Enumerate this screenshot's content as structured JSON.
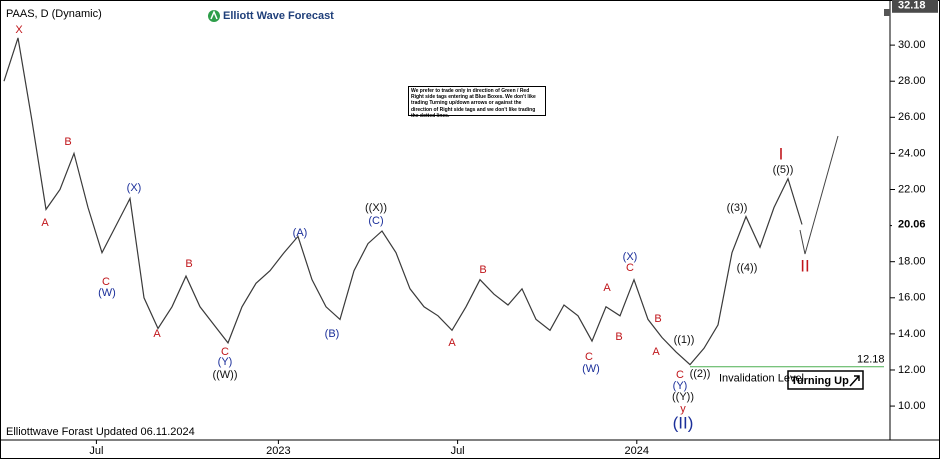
{
  "chart_data": {
    "type": "line",
    "title": "PAAS, D (Dynamic)",
    "color": "#3a3a3a",
    "values": [
      28,
      30.4,
      25.8,
      20.9,
      22,
      24,
      21,
      18.5,
      20,
      21.5,
      16,
      14.3,
      15.5,
      17.2,
      15.5,
      14.5,
      13.5,
      15.5,
      16.8,
      17.5,
      18.5,
      19.4,
      17,
      15.5,
      14.8,
      17.5,
      19,
      19.7,
      18.5,
      16.5,
      15.5,
      15,
      14.2,
      15.5,
      17,
      16.2,
      15.6,
      16.5,
      14.8,
      14.2,
      15.6,
      15,
      13.6,
      15.5,
      15,
      17,
      14.8,
      13.8,
      13,
      12.3,
      13.2,
      14.5,
      18.5,
      20.5,
      18.8,
      21,
      22.6,
      20.06
    ],
    "xlim": [
      0,
      63
    ],
    "xticks": [
      {
        "value": 6.6,
        "label": "Jul"
      },
      {
        "value": 19.6,
        "label": "2023"
      },
      {
        "value": 32.4,
        "label": "Jul"
      },
      {
        "value": 45.2,
        "label": "2024"
      }
    ],
    "ylim": [
      8.12,
      32.5
    ],
    "yticks": [
      {
        "value": 10,
        "label": "10.00"
      },
      {
        "value": 12,
        "label": "12.00"
      },
      {
        "value": 14,
        "label": "14.00"
      },
      {
        "value": 16,
        "label": "16.00"
      },
      {
        "value": 18,
        "label": "18.00"
      },
      {
        "value": 20,
        "label": "20.00"
      },
      {
        "value": 22,
        "label": "22.00"
      },
      {
        "value": 24,
        "label": "24.00"
      },
      {
        "value": 26,
        "label": "26.00"
      },
      {
        "value": 28,
        "label": "28.00"
      },
      {
        "value": 30,
        "label": "30.00"
      }
    ],
    "high_price": 32.18,
    "last_price": 20.06,
    "invalidation_level": 12.18,
    "invalidation_label": "Invalidation Level",
    "invalidation_color": "#4caf50"
  },
  "logo": "Elliott Wave Forecast",
  "note": "We prefer to trade only in direction of Green / Red Right side tags entering at Blue Boxes. We don't like trading Turning up/down arrows or against the direction of Right side tags and we don't like trading the dotted lines.",
  "footer": "Elliottwave Forast Updated 06.11.2024",
  "signal": "Turning Up",
  "wave_labels": [
    "X",
    "B",
    "A",
    "(X)",
    "C",
    "(W)",
    "A",
    "B",
    "C",
    "(Y)",
    "((W))",
    "(A)",
    "(B)",
    "((X))",
    "(C)",
    "B",
    "A",
    "A",
    "B",
    "C",
    "(W)",
    "(X)",
    "C",
    "B",
    "A",
    "C",
    "(Y)",
    "((Y))",
    "y",
    "(II)",
    "((1))",
    "((2))",
    "((3))",
    "((4))",
    "((5))",
    "I",
    "II"
  ]
}
